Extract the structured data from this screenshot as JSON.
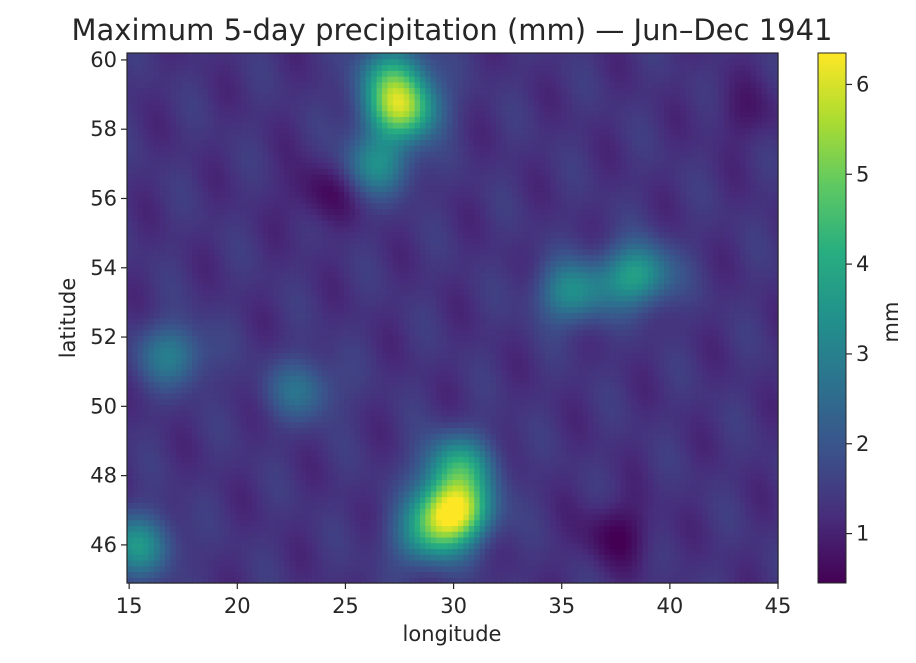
{
  "chart_data": {
    "type": "heatmap",
    "title": "Maximum 5-day precipitation (mm) — Jun–Dec 1941",
    "xlabel": "longitude",
    "ylabel": "latitude",
    "xlim": [
      14.9,
      45
    ],
    "ylim": [
      44.9,
      60.2
    ],
    "xticks": [
      15,
      20,
      25,
      30,
      35,
      40,
      45
    ],
    "yticks": [
      46,
      48,
      50,
      52,
      54,
      56,
      58,
      60
    ],
    "colorbar": {
      "label": "mm",
      "range": [
        0.45,
        6.35
      ],
      "ticks": [
        1,
        2,
        3,
        4,
        5,
        6
      ],
      "colormap": "viridis"
    },
    "grid": false,
    "background_level": 1.3,
    "features": [
      {
        "lon": 27.6,
        "lat": 58.6,
        "value": 5.2
      },
      {
        "lon": 27.2,
        "lat": 59.6,
        "value": 3.5
      },
      {
        "lon": 26.5,
        "lat": 57.0,
        "value": 3.2
      },
      {
        "lon": 38.5,
        "lat": 53.8,
        "value": 3.8
      },
      {
        "lon": 35.5,
        "lat": 53.3,
        "value": 3.3
      },
      {
        "lon": 30.0,
        "lat": 47.0,
        "value": 6.2
      },
      {
        "lon": 30.2,
        "lat": 48.3,
        "value": 3.8
      },
      {
        "lon": 28.8,
        "lat": 46.2,
        "value": 3.2
      },
      {
        "lon": 17.0,
        "lat": 51.5,
        "value": 2.9
      },
      {
        "lon": 15.4,
        "lat": 46.0,
        "value": 3.4
      },
      {
        "lon": 23.0,
        "lat": 50.5,
        "value": 2.6
      },
      {
        "lon": 24.0,
        "lat": 56.2,
        "value": 0.6
      },
      {
        "lon": 37.5,
        "lat": 46.3,
        "value": 0.5
      },
      {
        "lon": 43.5,
        "lat": 58.5,
        "value": 0.9
      }
    ]
  }
}
